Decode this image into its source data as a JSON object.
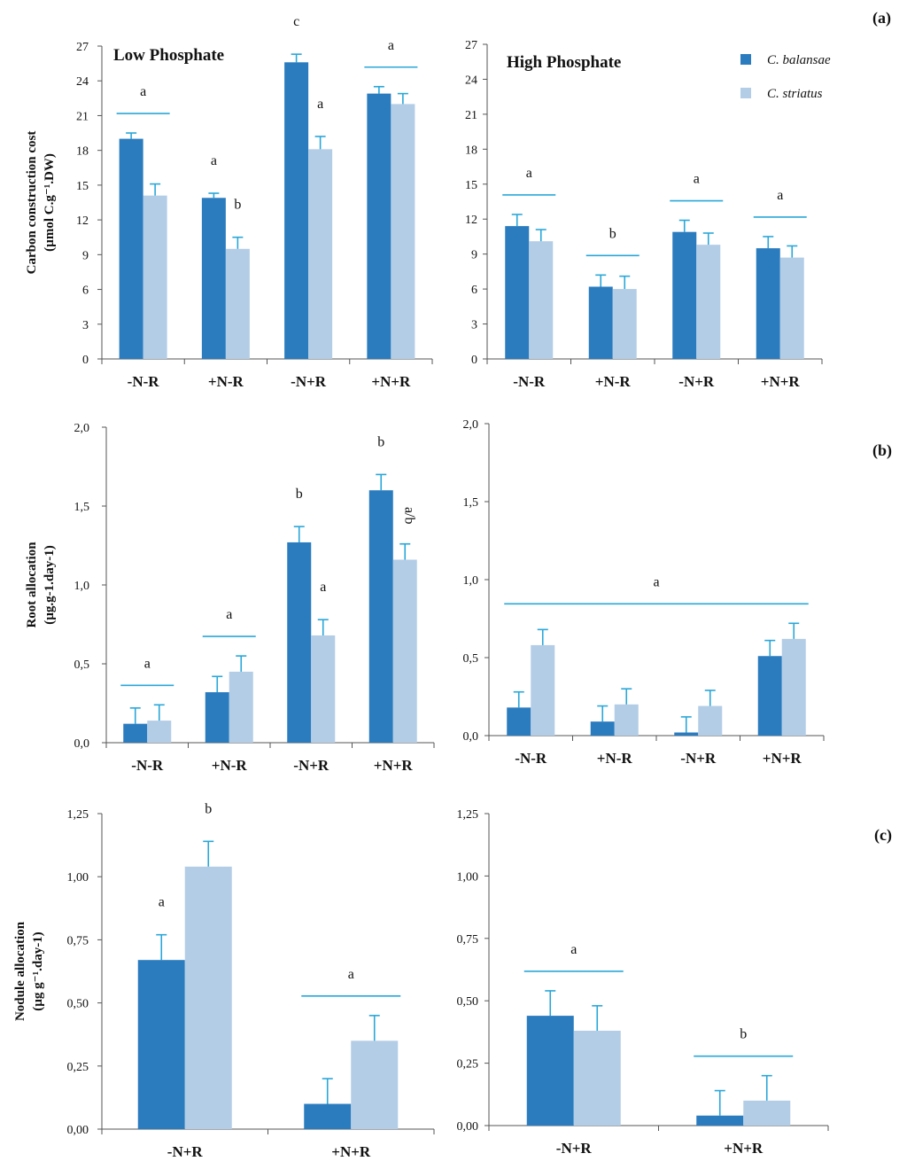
{
  "colors": {
    "balansae": "#2a7cbf",
    "striatus": "#b3cde6",
    "bar_line": "#2aa7d8",
    "axis": "#555555"
  },
  "legend": {
    "series_1": "C. balansae",
    "series_2": "C. striatus"
  },
  "panel_labels": [
    "(a)",
    "(b)",
    "(c)"
  ],
  "chart_data": [
    {
      "id": "a_low",
      "type": "bar",
      "panel": "(a)",
      "title": "Low Phosphate",
      "ylabel_line1": "Carbon construction cost",
      "ylabel_line2": "(µmol C.g⁻¹.DW)",
      "ylim": [
        0,
        27
      ],
      "yticks": [
        "0",
        "3",
        "6",
        "9",
        "12",
        "15",
        "18",
        "21",
        "24",
        "27"
      ],
      "categories": [
        "-N-R",
        "+N-R",
        "-N+R",
        "+N+R"
      ],
      "series": [
        {
          "name": "C. balansae",
          "values": [
            19.0,
            13.9,
            25.6,
            22.9
          ],
          "errors": [
            0.5,
            0.4,
            0.7,
            0.6
          ]
        },
        {
          "name": "C. striatus",
          "values": [
            14.1,
            9.5,
            18.1,
            22.0
          ],
          "errors": [
            1.0,
            1.0,
            1.1,
            0.9
          ]
        }
      ],
      "annotations": [
        {
          "text": "a",
          "type": "line",
          "cats": [
            0,
            0
          ]
        },
        {
          "text": "a",
          "type": "bar",
          "cat": 1,
          "series": 0
        },
        {
          "text": "b",
          "type": "bar",
          "cat": 1,
          "series": 1
        },
        {
          "text": "c",
          "type": "bar",
          "cat": 2,
          "series": 0
        },
        {
          "text": "a",
          "type": "bar",
          "cat": 2,
          "series": 1
        },
        {
          "text": "a",
          "type": "line",
          "cats": [
            3,
            3
          ]
        }
      ]
    },
    {
      "id": "a_high",
      "type": "bar",
      "panel": "(a)",
      "title": "High Phosphate",
      "ylim": [
        0,
        27
      ],
      "yticks": [
        "0",
        "3",
        "6",
        "9",
        "12",
        "15",
        "18",
        "21",
        "24",
        "27"
      ],
      "categories": [
        "-N-R",
        "+N-R",
        "-N+R",
        "+N+R"
      ],
      "series": [
        {
          "name": "C. balansae",
          "values": [
            11.4,
            6.2,
            10.9,
            9.5
          ],
          "errors": [
            1.0,
            1.0,
            1.0,
            1.0
          ]
        },
        {
          "name": "C. striatus",
          "values": [
            10.1,
            6.0,
            9.8,
            8.7
          ],
          "errors": [
            1.0,
            1.1,
            1.0,
            1.0
          ]
        }
      ],
      "annotations": [
        {
          "text": "a",
          "type": "line",
          "cats": [
            0,
            0
          ]
        },
        {
          "text": "b",
          "type": "line",
          "cats": [
            1,
            1
          ]
        },
        {
          "text": "a",
          "type": "line",
          "cats": [
            2,
            2
          ]
        },
        {
          "text": "a",
          "type": "line",
          "cats": [
            3,
            3
          ]
        }
      ]
    },
    {
      "id": "b_low",
      "type": "bar",
      "panel": "(b)",
      "ylabel_line1": "Root allocation",
      "ylabel_line2": "(µg.g-1.day-1)",
      "ylim": [
        0,
        2.0
      ],
      "yticks": [
        "0,0",
        "0,5",
        "1,0",
        "1,5",
        "2,0"
      ],
      "categories": [
        "-N-R",
        "+N-R",
        "-N+R",
        "+N+R"
      ],
      "series": [
        {
          "name": "C. balansae",
          "values": [
            0.12,
            0.32,
            1.27,
            1.6
          ],
          "errors": [
            0.1,
            0.1,
            0.1,
            0.1
          ]
        },
        {
          "name": "C. striatus",
          "values": [
            0.14,
            0.45,
            0.68,
            1.16
          ],
          "errors": [
            0.1,
            0.1,
            0.1,
            0.1
          ]
        }
      ],
      "annotations": [
        {
          "text": "a",
          "type": "line",
          "cats": [
            0,
            0
          ]
        },
        {
          "text": "a",
          "type": "line",
          "cats": [
            1,
            1
          ]
        },
        {
          "text": "b",
          "type": "bar",
          "cat": 2,
          "series": 0
        },
        {
          "text": "a",
          "type": "bar",
          "cat": 2,
          "series": 1
        },
        {
          "text": "b",
          "type": "bar",
          "cat": 3,
          "series": 0
        },
        {
          "text": "a/b",
          "type": "bar",
          "cat": 3,
          "series": 1,
          "rotated": true
        }
      ]
    },
    {
      "id": "b_high",
      "type": "bar",
      "panel": "(b)",
      "ylim": [
        0,
        2.0
      ],
      "yticks": [
        "0,0",
        "0,5",
        "1,0",
        "1,5",
        "2,0"
      ],
      "categories": [
        "-N-R",
        "+N-R",
        "-N+R",
        "+N+R"
      ],
      "series": [
        {
          "name": "C. balansae",
          "values": [
            0.18,
            0.09,
            0.02,
            0.51
          ],
          "errors": [
            0.1,
            0.1,
            0.1,
            0.1
          ]
        },
        {
          "name": "C. striatus",
          "values": [
            0.58,
            0.2,
            0.19,
            0.62
          ],
          "errors": [
            0.1,
            0.1,
            0.1,
            0.1
          ]
        }
      ],
      "annotations": [
        {
          "text": "a",
          "type": "line",
          "cats": [
            0,
            3
          ]
        }
      ]
    },
    {
      "id": "c_low",
      "type": "bar",
      "panel": "(c)",
      "ylabel_line1": "Nodule allocation",
      "ylabel_line2": "(µg g⁻¹.day-1)",
      "ylim": [
        0,
        1.25
      ],
      "yticks": [
        "0,00",
        "0,25",
        "0,50",
        "0,75",
        "1,00",
        "1,25"
      ],
      "categories": [
        "-N+R",
        "+N+R"
      ],
      "series": [
        {
          "name": "C. balansae",
          "values": [
            0.67,
            0.1
          ],
          "errors": [
            0.1,
            0.1
          ]
        },
        {
          "name": "C. striatus",
          "values": [
            1.04,
            0.35
          ],
          "errors": [
            0.1,
            0.1
          ]
        }
      ],
      "annotations": [
        {
          "text": "a",
          "type": "bar",
          "cat": 0,
          "series": 0
        },
        {
          "text": "b",
          "type": "bar",
          "cat": 0,
          "series": 1
        },
        {
          "text": "a",
          "type": "line",
          "cats": [
            1,
            1
          ]
        }
      ]
    },
    {
      "id": "c_high",
      "type": "bar",
      "panel": "(c)",
      "ylim": [
        0,
        1.25
      ],
      "yticks": [
        "0,00",
        "0,25",
        "0,50",
        "0,75",
        "1,00",
        "1,25"
      ],
      "categories": [
        "-N+R",
        "+N+R"
      ],
      "series": [
        {
          "name": "C. balansae",
          "values": [
            0.44,
            0.04
          ],
          "errors": [
            0.1,
            0.1
          ]
        },
        {
          "name": "C. striatus",
          "values": [
            0.38,
            0.1
          ],
          "errors": [
            0.1,
            0.1
          ]
        }
      ],
      "annotations": [
        {
          "text": "a",
          "type": "line",
          "cats": [
            0,
            0
          ]
        },
        {
          "text": "b",
          "type": "line",
          "cats": [
            1,
            1
          ]
        }
      ]
    }
  ]
}
